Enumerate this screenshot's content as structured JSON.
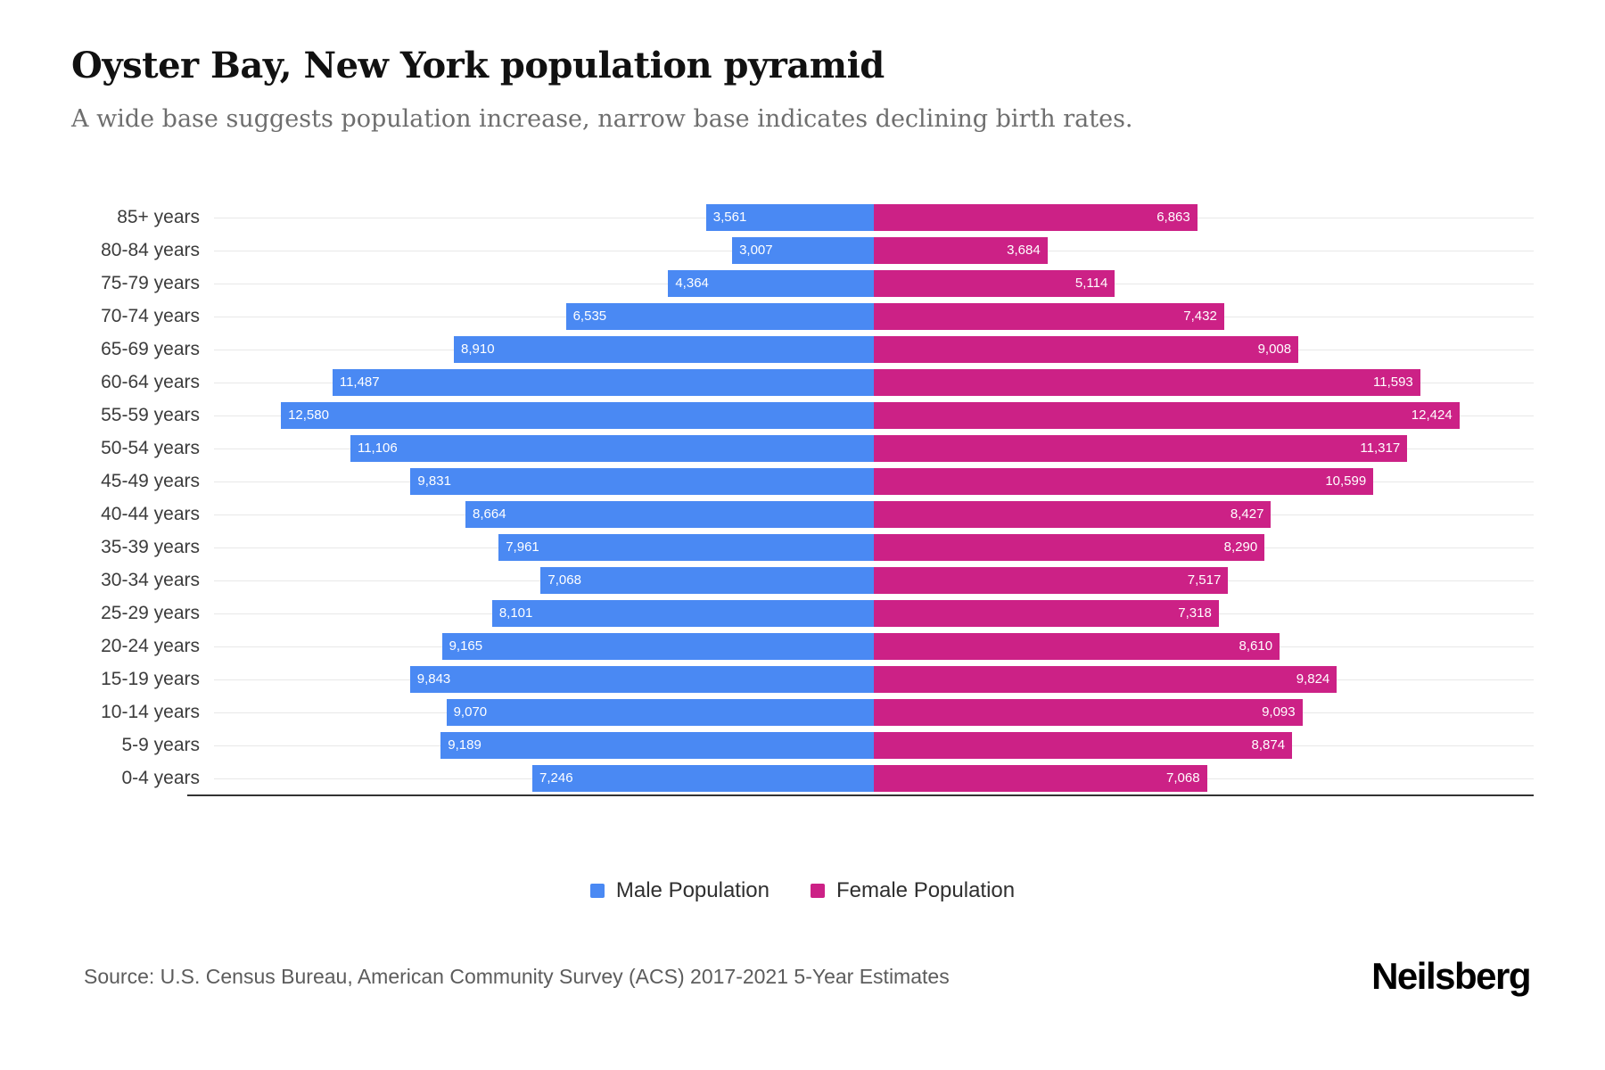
{
  "header": {
    "title": "Oyster Bay, New York population pyramid",
    "subtitle": "A wide base suggests population increase, narrow base indicates declining birth rates."
  },
  "chart_data": {
    "type": "bar",
    "variant": "population-pyramid",
    "orientation": "horizontal",
    "categories": [
      "85+ years",
      "80-84 years",
      "75-79 years",
      "70-74 years",
      "65-69 years",
      "60-64 years",
      "55-59 years",
      "50-54 years",
      "45-49 years",
      "40-44 years",
      "35-39 years",
      "30-34 years",
      "25-29 years",
      "20-24 years",
      "15-19 years",
      "10-14 years",
      "5-9 years",
      "0-4 years"
    ],
    "series": [
      {
        "name": "Male Population",
        "side": "left",
        "color": "#4a89f3",
        "values": [
          3561,
          3007,
          4364,
          6535,
          8910,
          11487,
          12580,
          11106,
          9831,
          8664,
          7961,
          7068,
          8101,
          9165,
          9843,
          9070,
          9189,
          7246
        ]
      },
      {
        "name": "Female Population",
        "side": "right",
        "color": "#cc2186",
        "values": [
          6863,
          3684,
          5114,
          7432,
          9008,
          11593,
          12424,
          11317,
          10599,
          8427,
          8290,
          7517,
          7318,
          8610,
          9824,
          9093,
          8874,
          7068
        ]
      }
    ],
    "value_axis_max": 14000,
    "grid": true,
    "legend_position": "bottom",
    "value_labels": "inside-outer-end"
  },
  "footer": {
    "source": "Source: U.S. Census Bureau, American Community Survey (ACS) 2017-2021 5-Year Estimates",
    "brand": "Neilsberg"
  }
}
